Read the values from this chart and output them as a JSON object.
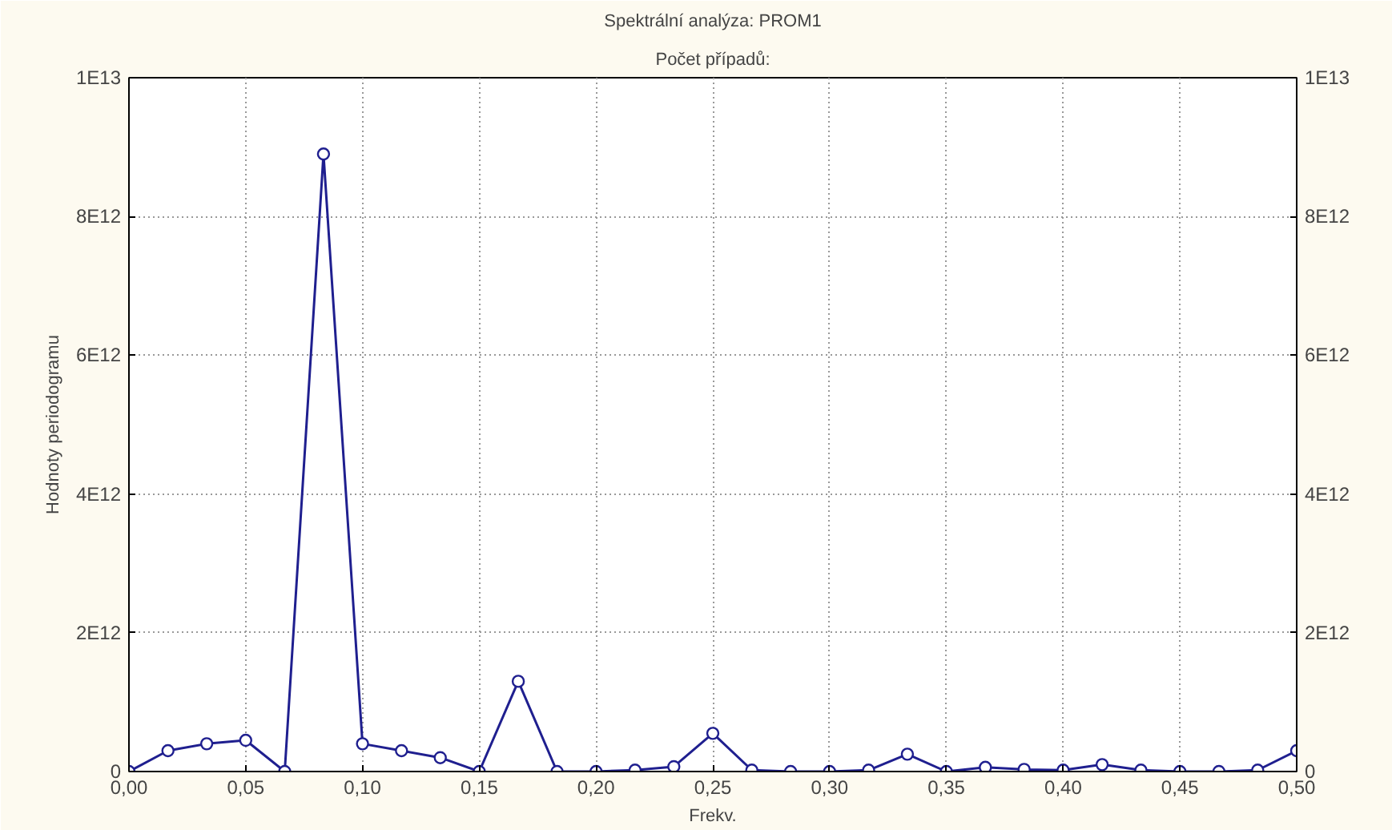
{
  "chart_data": {
    "type": "line",
    "title": "Spektrální analýza: PROM1",
    "subtitle": "Počet případů:",
    "xlabel": "Frekv.",
    "ylabel": "Hodnoty periodogramu",
    "x": [
      0,
      0.0167,
      0.0333,
      0.05,
      0.0667,
      0.0833,
      0.1,
      0.1167,
      0.1333,
      0.15,
      0.1667,
      0.1833,
      0.2,
      0.2167,
      0.2333,
      0.25,
      0.2667,
      0.2833,
      0.3,
      0.3167,
      0.3333,
      0.35,
      0.3667,
      0.3833,
      0.4,
      0.4167,
      0.4333,
      0.45,
      0.4667,
      0.4833,
      0.5
    ],
    "series": [
      {
        "color": "#1f1f8f",
        "values": [
          0,
          300000000000.0,
          400000000000.0,
          450000000000.0,
          0,
          8900000000000.0,
          400000000000.0,
          300000000000.0,
          200000000000.0,
          0,
          1300000000000.0,
          0,
          0,
          20000000000.0,
          70000000000.0,
          550000000000.0,
          20000000000.0,
          0,
          0,
          20000000000.0,
          250000000000.0,
          0,
          60000000000.0,
          30000000000.0,
          20000000000.0,
          100000000000.0,
          20000000000.0,
          0,
          0,
          20000000000.0,
          300000000000.0
        ]
      }
    ],
    "xlim": [
      0,
      0.5
    ],
    "xticks": [
      {
        "value": 0,
        "label": "0,00"
      },
      {
        "value": 0.05,
        "label": "0,05"
      },
      {
        "value": 0.1,
        "label": "0,10"
      },
      {
        "value": 0.15,
        "label": "0,15"
      },
      {
        "value": 0.2,
        "label": "0,20"
      },
      {
        "value": 0.25,
        "label": "0,25"
      },
      {
        "value": 0.3,
        "label": "0,30"
      },
      {
        "value": 0.35,
        "label": "0,35"
      },
      {
        "value": 0.4,
        "label": "0,40"
      },
      {
        "value": 0.45,
        "label": "0,45"
      },
      {
        "value": 0.5,
        "label": "0,50"
      }
    ],
    "ylim": [
      0,
      10000000000000.0
    ],
    "yticks": [
      0,
      {
        "value": 2000000000000.0,
        "label": "2E12"
      },
      {
        "value": 4000000000000.0,
        "label": "4E12"
      },
      {
        "value": 6000000000000.0,
        "label": "6E12"
      },
      {
        "value": 8000000000000.0,
        "label": "8E12"
      },
      {
        "value": 10000000000000.0,
        "label": "1E13"
      }
    ],
    "y2lim": [
      0,
      10000000000000.0
    ],
    "y2ticks": [
      0,
      {
        "value": 2000000000000.0,
        "label": "2E12"
      },
      {
        "value": 4000000000000.0,
        "label": "4E12"
      },
      {
        "value": 6000000000000.0,
        "label": "6E12"
      },
      {
        "value": 8000000000000.0,
        "label": "8E12"
      },
      {
        "value": 10000000000000.0,
        "label": "1E13"
      }
    ],
    "grid": true,
    "marker": "circle",
    "line_style": "solid"
  }
}
